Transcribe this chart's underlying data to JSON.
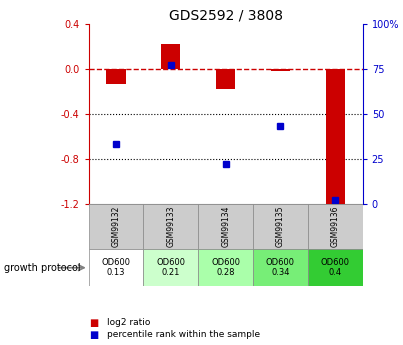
{
  "title": "GDS2592 / 3808",
  "samples": [
    "GSM99132",
    "GSM99133",
    "GSM99134",
    "GSM99135",
    "GSM99136"
  ],
  "log2_ratio": [
    -0.13,
    0.22,
    -0.18,
    -0.02,
    -1.2
  ],
  "percentile_rank": [
    33,
    77,
    22,
    43,
    2
  ],
  "ylim_left": [
    -1.2,
    0.4
  ],
  "ylim_right": [
    0,
    100
  ],
  "yticks_left": [
    -1.2,
    -0.8,
    -0.4,
    0.0,
    0.4
  ],
  "yticks_right": [
    0,
    25,
    50,
    75,
    100
  ],
  "growth_protocol_lines": [
    [
      "OD600",
      "0.13"
    ],
    [
      "OD600",
      "0.21"
    ],
    [
      "OD600",
      "0.28"
    ],
    [
      "OD600",
      "0.34"
    ],
    [
      "OD600",
      "0.4"
    ]
  ],
  "gp_colors": [
    "#ffffff",
    "#ccffcc",
    "#aaffaa",
    "#77ee77",
    "#33cc33"
  ],
  "bar_color": "#cc0000",
  "dot_color": "#0000cc",
  "dashed_line_color": "#cc0000",
  "background_color": "#ffffff",
  "label_bg_color": "#cccccc",
  "legend_bar_label": "log2 ratio",
  "legend_dot_label": "percentile rank within the sample",
  "bar_width": 0.35
}
